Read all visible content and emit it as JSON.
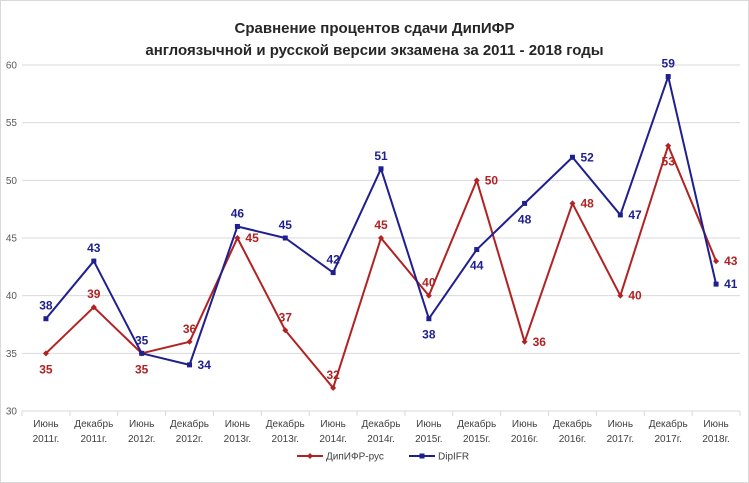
{
  "chart_data": {
    "type": "line",
    "title_line1": "Сравнение процентов сдачи ДипИФР",
    "title_line2": "англоязычной и русской версии экзамена за 2011 - 2018 годы",
    "categories": [
      [
        "Июнь",
        "2011г."
      ],
      [
        "Декабрь",
        "2011г."
      ],
      [
        "Июнь",
        "2012г."
      ],
      [
        "Декабрь",
        "2012г."
      ],
      [
        "Июнь",
        "2013г."
      ],
      [
        "Декабрь",
        "2013г."
      ],
      [
        "Июнь",
        "2014г."
      ],
      [
        "Декабрь",
        "2014г."
      ],
      [
        "Июнь",
        "2015г."
      ],
      [
        "Декабрь",
        "2015г."
      ],
      [
        "Июнь",
        "2016г."
      ],
      [
        "Декабрь",
        "2016г."
      ],
      [
        "Июнь",
        "2017г."
      ],
      [
        "Декабрь",
        "2017г."
      ],
      [
        "Июнь",
        "2018г."
      ]
    ],
    "ylim": [
      30,
      60
    ],
    "yticks": [
      30,
      35,
      40,
      45,
      50,
      55,
      60
    ],
    "grid": true,
    "legend_position": "bottom",
    "series": [
      {
        "name": "ДипИФР-рус",
        "color": "#b22222",
        "marker": "diamond",
        "values": [
          35,
          39,
          35,
          36,
          45,
          37,
          32,
          45,
          40,
          50,
          36,
          48,
          40,
          53,
          43
        ],
        "label_position": [
          "below",
          "above",
          "below",
          "above",
          "right",
          "above",
          "above",
          "above",
          "above",
          "right",
          "right",
          "right",
          "right",
          "below",
          "right"
        ]
      },
      {
        "name": "DipIFR",
        "color": "#1f1f8f",
        "marker": "square",
        "values": [
          38,
          43,
          35,
          34,
          46,
          45,
          42,
          51,
          38,
          44,
          48,
          52,
          47,
          59,
          41
        ],
        "label_position": [
          "above",
          "above",
          "above",
          "right",
          "above",
          "above",
          "above",
          "above",
          "below",
          "below",
          "below",
          "right",
          "right",
          "above",
          "right"
        ]
      }
    ]
  }
}
